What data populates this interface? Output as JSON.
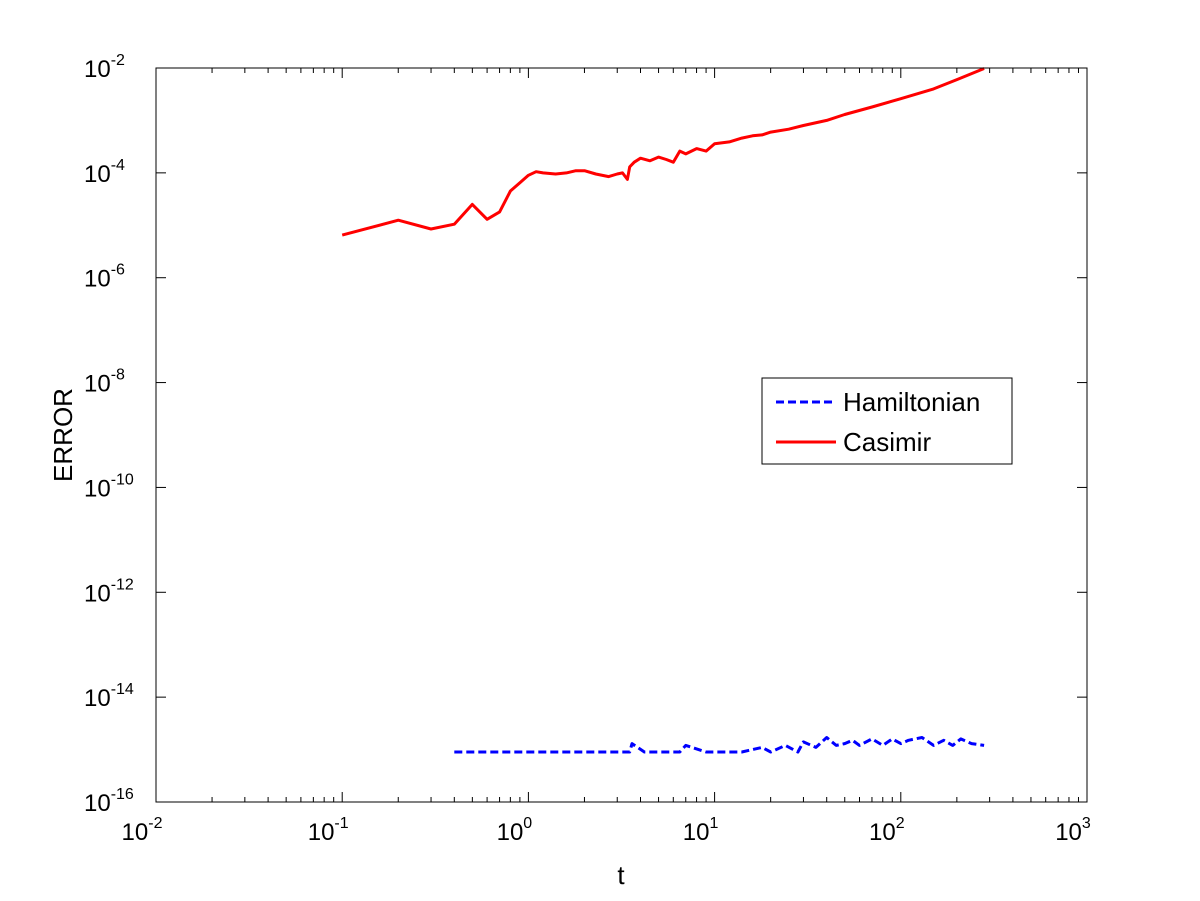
{
  "chart_data": {
    "type": "line",
    "title": "",
    "xlabel": "t",
    "ylabel": "ERROR",
    "x_scale": "log",
    "y_scale": "log",
    "xlim": [
      0.01,
      1000
    ],
    "ylim": [
      1e-16,
      0.01
    ],
    "grid": false,
    "legend_position": "right, middle",
    "x_ticks": [
      {
        "base": "10",
        "exp": "-2",
        "value": 0.01
      },
      {
        "base": "10",
        "exp": "-1",
        "value": 0.1
      },
      {
        "base": "10",
        "exp": "0",
        "value": 1
      },
      {
        "base": "10",
        "exp": "1",
        "value": 10
      },
      {
        "base": "10",
        "exp": "2",
        "value": 100
      },
      {
        "base": "10",
        "exp": "3",
        "value": 1000
      }
    ],
    "y_ticks": [
      {
        "base": "10",
        "exp": "-16",
        "value": 1e-16
      },
      {
        "base": "10",
        "exp": "-14",
        "value": 1e-14
      },
      {
        "base": "10",
        "exp": "-12",
        "value": 1e-12
      },
      {
        "base": "10",
        "exp": "-10",
        "value": 1e-10
      },
      {
        "base": "10",
        "exp": "-8",
        "value": 1e-08
      },
      {
        "base": "10",
        "exp": "-6",
        "value": 1e-06
      },
      {
        "base": "10",
        "exp": "-4",
        "value": 0.0001
      },
      {
        "base": "10",
        "exp": "-2",
        "value": 0.01
      }
    ],
    "series": [
      {
        "name": "Hamiltonian",
        "color": "#0000ff",
        "style": "dashed",
        "x": [
          0.4,
          0.7,
          1.2,
          2.0,
          3.5,
          3.6,
          4.2,
          6.5,
          7.0,
          9.0,
          12,
          14,
          18,
          20,
          24,
          28,
          30,
          35,
          40,
          45,
          50,
          55,
          60,
          70,
          80,
          90,
          100,
          110,
          130,
          150,
          170,
          190,
          210,
          240,
          280
        ],
        "y": [
          9e-16,
          9e-16,
          9e-16,
          9e-16,
          9e-16,
          1.3e-15,
          9e-16,
          9e-16,
          1.2e-15,
          9e-16,
          9e-16,
          9e-16,
          1.1e-15,
          9e-16,
          1.2e-15,
          9e-16,
          1.4e-15,
          1.1e-15,
          1.7e-15,
          1.2e-15,
          1.3e-15,
          1.5e-15,
          1.2e-15,
          1.6e-15,
          1.2e-15,
          1.6e-15,
          1.3e-15,
          1.5e-15,
          1.7e-15,
          1.2e-15,
          1.5e-15,
          1.2e-15,
          1.6e-15,
          1.3e-15,
          1.2e-15
        ]
      },
      {
        "name": "Casimir",
        "color": "#ff0000",
        "style": "solid",
        "x": [
          0.1,
          0.2,
          0.3,
          0.4,
          0.5,
          0.6,
          0.7,
          0.8,
          0.9,
          1.0,
          1.1,
          1.2,
          1.4,
          1.6,
          1.8,
          2.0,
          2.3,
          2.7,
          3.0,
          3.2,
          3.4,
          3.5,
          3.7,
          4.0,
          4.5,
          5.0,
          5.5,
          6.0,
          6.5,
          7.0,
          8.0,
          9.0,
          10,
          12,
          14,
          16,
          18,
          20,
          25,
          30,
          40,
          50,
          70,
          100,
          150,
          200,
          280
        ],
        "y": [
          6.5e-06,
          1.25e-05,
          8.5e-06,
          1.05e-05,
          2.5e-05,
          1.3e-05,
          1.8e-05,
          4.5e-05,
          6.5e-05,
          9e-05,
          0.000105,
          0.0001,
          9.5e-05,
          0.0001,
          0.00011,
          0.00011,
          9.5e-05,
          8.5e-05,
          9.5e-05,
          0.0001,
          7.5e-05,
          0.00013,
          0.00016,
          0.00019,
          0.00017,
          0.0002,
          0.00018,
          0.00016,
          0.00026,
          0.00023,
          0.00029,
          0.00026,
          0.00036,
          0.00039,
          0.00046,
          0.00051,
          0.00053,
          0.0006,
          0.00068,
          0.0008,
          0.001,
          0.0013,
          0.0018,
          0.0026,
          0.004,
          0.006,
          0.0098
        ]
      }
    ]
  }
}
